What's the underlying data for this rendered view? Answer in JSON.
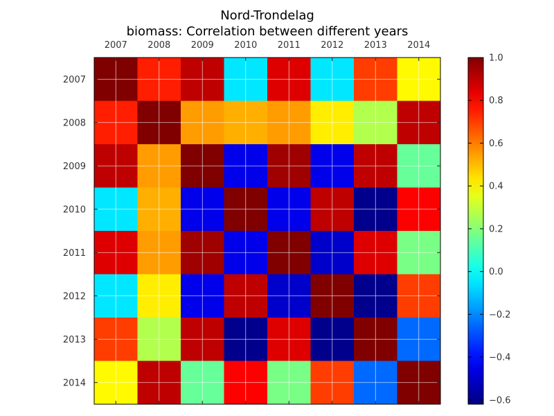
{
  "chart_data": {
    "type": "heatmap",
    "title": "Nord-Trondelag",
    "subtitle": "biomass: Correlation between different years",
    "xlabel": "",
    "ylabel": "",
    "categories": [
      "2007",
      "2008",
      "2009",
      "2010",
      "2011",
      "2012",
      "2013",
      "2014"
    ],
    "row_labels": [
      "2007",
      "2008",
      "2009",
      "2010",
      "2011",
      "2012",
      "2013",
      "2014"
    ],
    "values": [
      [
        1.0,
        0.75,
        0.9,
        -0.05,
        0.85,
        -0.05,
        0.7,
        0.4
      ],
      [
        0.75,
        1.0,
        0.55,
        0.52,
        0.55,
        0.42,
        0.27,
        0.9
      ],
      [
        0.9,
        0.55,
        1.0,
        -0.45,
        0.95,
        -0.45,
        0.9,
        0.15
      ],
      [
        -0.05,
        0.52,
        -0.45,
        1.0,
        -0.45,
        0.9,
        -0.6,
        0.8
      ],
      [
        0.85,
        0.55,
        0.95,
        -0.45,
        1.0,
        -0.5,
        0.85,
        0.18
      ],
      [
        -0.05,
        0.42,
        -0.45,
        0.9,
        -0.5,
        1.0,
        -0.6,
        0.7
      ],
      [
        0.7,
        0.27,
        0.9,
        -0.6,
        0.85,
        -0.6,
        1.0,
        -0.25
      ],
      [
        0.4,
        0.9,
        0.15,
        0.8,
        0.18,
        0.7,
        -0.25,
        1.0
      ]
    ],
    "vmin": -0.62,
    "vmax": 1.0,
    "colormap": "jet",
    "colorbar_ticks": [
      "1.0",
      "0.8",
      "0.6",
      "0.4",
      "0.2",
      "0.0",
      "−0.2",
      "−0.4",
      "−0.6"
    ],
    "colorbar_tick_values": [
      1.0,
      0.8,
      0.6,
      0.4,
      0.2,
      0.0,
      -0.2,
      -0.4,
      -0.6
    ],
    "grid": true,
    "xaxis_position": "top"
  }
}
